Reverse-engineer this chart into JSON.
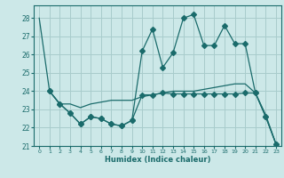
{
  "xlabel": "Humidex (Indice chaleur)",
  "bg_color": "#cce8e8",
  "line_color": "#1a6b6b",
  "grid_color": "#a8cccc",
  "xlim": [
    -0.5,
    23.5
  ],
  "ylim": [
    21,
    28.7
  ],
  "yticks": [
    21,
    22,
    23,
    24,
    25,
    26,
    27,
    28
  ],
  "xticks": [
    0,
    1,
    2,
    3,
    4,
    5,
    6,
    7,
    8,
    9,
    10,
    11,
    12,
    13,
    14,
    15,
    16,
    17,
    18,
    19,
    20,
    21,
    22,
    23
  ],
  "line1_x": [
    0,
    1,
    2,
    3,
    4,
    5,
    6,
    7,
    8,
    9,
    10,
    11,
    12,
    13,
    14,
    15,
    16,
    17,
    18,
    19,
    20,
    21,
    22,
    23
  ],
  "line1_y": [
    28,
    24.0,
    23.3,
    23.3,
    23.1,
    23.3,
    23.4,
    23.5,
    23.5,
    23.5,
    23.7,
    23.8,
    23.9,
    24.0,
    24.0,
    24.0,
    24.1,
    24.2,
    24.3,
    24.4,
    24.4,
    23.9,
    22.7,
    21.1
  ],
  "line2_x": [
    1,
    2,
    3,
    4,
    5,
    6,
    7,
    8,
    9,
    10,
    11,
    12,
    13,
    14,
    15,
    16,
    17,
    18,
    19,
    20,
    21,
    22,
    23
  ],
  "line2_y": [
    24.0,
    23.3,
    22.8,
    22.2,
    22.6,
    22.5,
    22.2,
    22.1,
    22.4,
    23.8,
    23.8,
    23.9,
    23.85,
    23.85,
    23.85,
    23.85,
    23.85,
    23.85,
    23.85,
    23.9,
    23.9,
    22.6,
    21.1
  ],
  "line3_x": [
    1,
    2,
    3,
    4,
    5,
    6,
    7,
    8,
    9,
    10,
    11,
    12,
    13,
    14,
    15,
    16,
    17,
    18,
    19,
    20,
    21,
    22,
    23
  ],
  "line3_y": [
    24.0,
    23.3,
    22.8,
    22.2,
    22.6,
    22.5,
    22.2,
    22.1,
    22.4,
    26.2,
    27.4,
    25.3,
    26.1,
    28.0,
    28.2,
    26.5,
    26.5,
    27.6,
    26.6,
    26.6,
    23.9,
    22.6,
    21.1
  ]
}
